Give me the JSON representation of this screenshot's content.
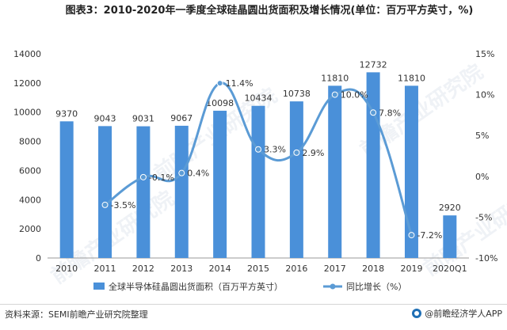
{
  "title": "图表3：2010-2020年一季度全球硅晶圆出货面积及增长情况(单位：百万平方英寸，%)",
  "source": "资料来源：SEMI前瞻产业研究院整理",
  "brand": "@前瞻经济学人APP",
  "watermark_text": "前瞻产业研究院",
  "colors": {
    "bar": "#4a90d9",
    "line": "#5b9bd5",
    "axis": "#999999",
    "text": "#333333"
  },
  "chart_data": {
    "type": "bar",
    "title": "图表3：2010-2020年一季度全球硅晶圆出货面积及增长情况(单位：百万平方英寸，%)",
    "categories": [
      "2010",
      "2011",
      "2012",
      "2013",
      "2014",
      "2015",
      "2016",
      "2017",
      "2018",
      "2019",
      "2020Q1"
    ],
    "series": [
      {
        "name": "全球半导体硅晶圆出货面积（百万平方英寸）",
        "type": "bar",
        "axis": "left",
        "values": [
          9370,
          9043,
          9031,
          9067,
          10098,
          10434,
          10738,
          11810,
          12732,
          11810,
          2920
        ],
        "labels": [
          "9370",
          "9043",
          "9031",
          "9067",
          "10098",
          "10434",
          "10738",
          "11810",
          "12732",
          "11810",
          "2920"
        ]
      },
      {
        "name": "同比增长（%）",
        "type": "line",
        "axis": "right",
        "values": [
          null,
          -3.5,
          -0.1,
          0.4,
          11.4,
          3.3,
          2.9,
          10.0,
          7.8,
          -7.2,
          null
        ],
        "labels": [
          "",
          "-3.5%",
          "-0.1%",
          "0.4%",
          "11.4%",
          "3.3%",
          "2.9%",
          "10.0%",
          "7.8%",
          "-7.2%",
          ""
        ]
      }
    ],
    "y_left": {
      "range": [
        0,
        14000
      ],
      "ticks": [
        "0",
        "2000",
        "4000",
        "6000",
        "8000",
        "10000",
        "12000",
        "14000"
      ]
    },
    "y_right": {
      "range": [
        -10,
        15
      ],
      "ticks": [
        "-10%",
        "-5%",
        "0%",
        "5%",
        "10%",
        "15%"
      ]
    },
    "legend_placement": "bottom",
    "grid": false
  }
}
